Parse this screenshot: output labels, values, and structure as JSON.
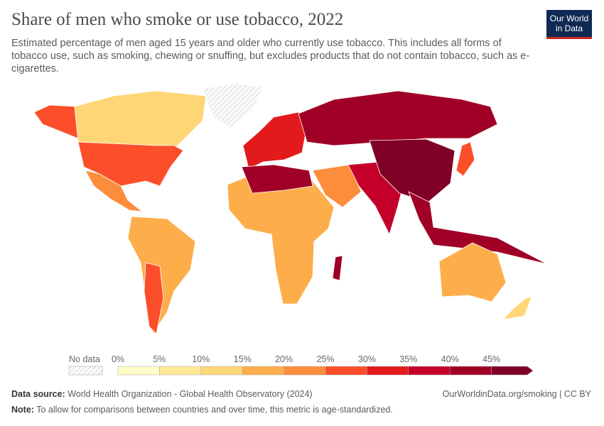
{
  "header": {
    "title": "Share of men who smoke or use tobacco, 2022",
    "subtitle": "Estimated percentage of men aged 15 years and older who currently use tobacco. This includes all forms of tobacco use, such as smoking, chewing or snuffing, but excludes products that do not contain tobacco, such as e-cigarettes.",
    "logo": "Our World in Data"
  },
  "legend": {
    "no_data_label": "No data",
    "ticks": [
      "0%",
      "5%",
      "10%",
      "15%",
      "20%",
      "25%",
      "30%",
      "35%",
      "40%",
      "45%"
    ],
    "bins": [
      {
        "range": "0-5",
        "color": "#fffdc8"
      },
      {
        "range": "5-10",
        "color": "#fee997"
      },
      {
        "range": "10-15",
        "color": "#fed676"
      },
      {
        "range": "15-20",
        "color": "#fdae4b"
      },
      {
        "range": "20-25",
        "color": "#fc8d3c"
      },
      {
        "range": "25-30",
        "color": "#fc4e2a"
      },
      {
        "range": "30-35",
        "color": "#e31a1c"
      },
      {
        "range": "35-40",
        "color": "#c4002a"
      },
      {
        "range": "40-45",
        "color": "#a00026"
      },
      {
        "range": "45+",
        "color": "#800026"
      }
    ]
  },
  "map_regions": [
    {
      "name": "Alaska (United States)",
      "bin": "25-30"
    },
    {
      "name": "Canada",
      "bin": "10-15"
    },
    {
      "name": "Greenland",
      "bin": "no data"
    },
    {
      "name": "United States",
      "bin": "25-30"
    },
    {
      "name": "Mexico",
      "bin": "20-25"
    },
    {
      "name": "South America",
      "bin": "15-20"
    },
    {
      "name": "Chile / Argentina",
      "bin": "25-30"
    },
    {
      "name": "Europe",
      "bin": "30-35"
    },
    {
      "name": "Russia",
      "bin": "40-45"
    },
    {
      "name": "Africa",
      "bin": "15-20"
    },
    {
      "name": "North Africa",
      "bin": "40-45"
    },
    {
      "name": "Middle East",
      "bin": "20-25"
    },
    {
      "name": "South Asia",
      "bin": "35-40"
    },
    {
      "name": "China",
      "bin": "45+"
    },
    {
      "name": "Southeast Asia",
      "bin": "40-45"
    },
    {
      "name": "Japan",
      "bin": "25-30"
    },
    {
      "name": "Australia",
      "bin": "15-20"
    },
    {
      "name": "Madagascar",
      "bin": "40-45"
    },
    {
      "name": "New Zealand",
      "bin": "10-15"
    }
  ],
  "footer": {
    "source_label": "Data source:",
    "source": "World Health Organization - Global Health Observatory (2024)",
    "url": "OurWorldinData.org/smoking | CC BY",
    "note_label": "Note:",
    "note": "To allow for comparisons between countries and over time, this metric is age-standardized."
  }
}
